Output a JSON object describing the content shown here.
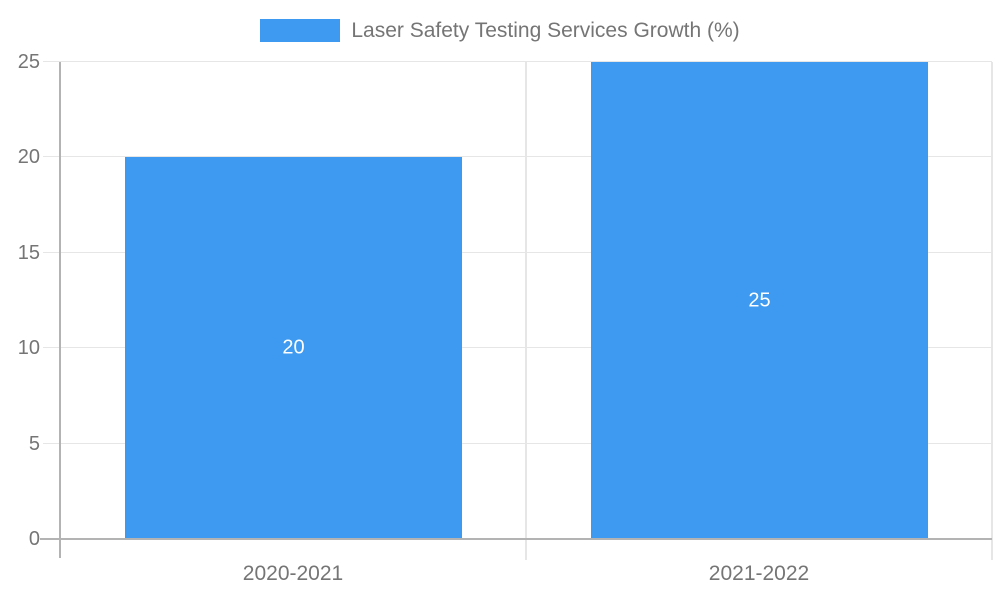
{
  "chart_data": {
    "type": "bar",
    "title": "Laser Safety Testing Services Growth (%)",
    "legend_position": "top-center",
    "categories": [
      "2020-2021",
      "2021-2022"
    ],
    "series": [
      {
        "name": "Laser Safety Testing Services Growth (%)",
        "values": [
          20,
          25
        ]
      }
    ],
    "bar_value_labels": [
      "20",
      "25"
    ],
    "xlabel": "",
    "ylabel": "",
    "ylim": [
      0,
      25
    ],
    "y_ticks": [
      0,
      5,
      10,
      15,
      20,
      25
    ],
    "grid": true,
    "colors": {
      "bar": "#3D9AF0",
      "gridline": "#E6E6E6",
      "axis_line": "#B3B3B3",
      "tick_text": "#757575",
      "bar_label_text": "#FFFFFF"
    }
  }
}
